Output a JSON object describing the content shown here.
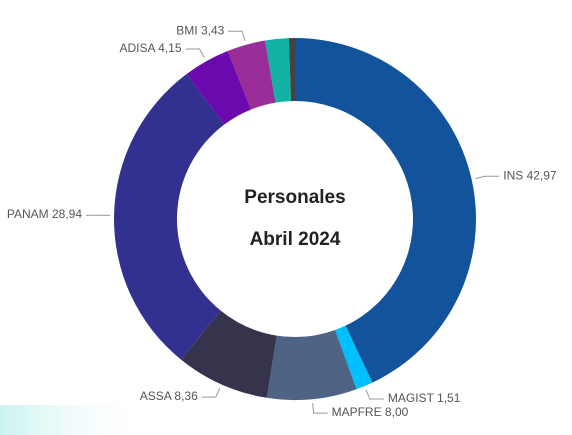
{
  "chart_data": {
    "type": "donut",
    "title_lines": [
      "Personales",
      "Abril 2024"
    ],
    "categories": [
      "INS",
      "MAGIST",
      "MAPFRE",
      "ASSA",
      "PANAM",
      "ADISA",
      "BMI",
      null,
      null
    ],
    "values": [
      42.97,
      1.51,
      8.0,
      8.36,
      28.94,
      4.15,
      3.43,
      2.1,
      0.54
    ],
    "value_labels": [
      "42,97",
      "1,51",
      "8,00",
      "8,36",
      "28,94",
      "4,15",
      "3,43",
      null,
      null
    ],
    "colors": [
      "#12539b",
      "#00bfff",
      "#4f6384",
      "#36344c",
      "#33318f",
      "#6a0aae",
      "#992e9b",
      "#14b2a4",
      "#444444"
    ]
  }
}
